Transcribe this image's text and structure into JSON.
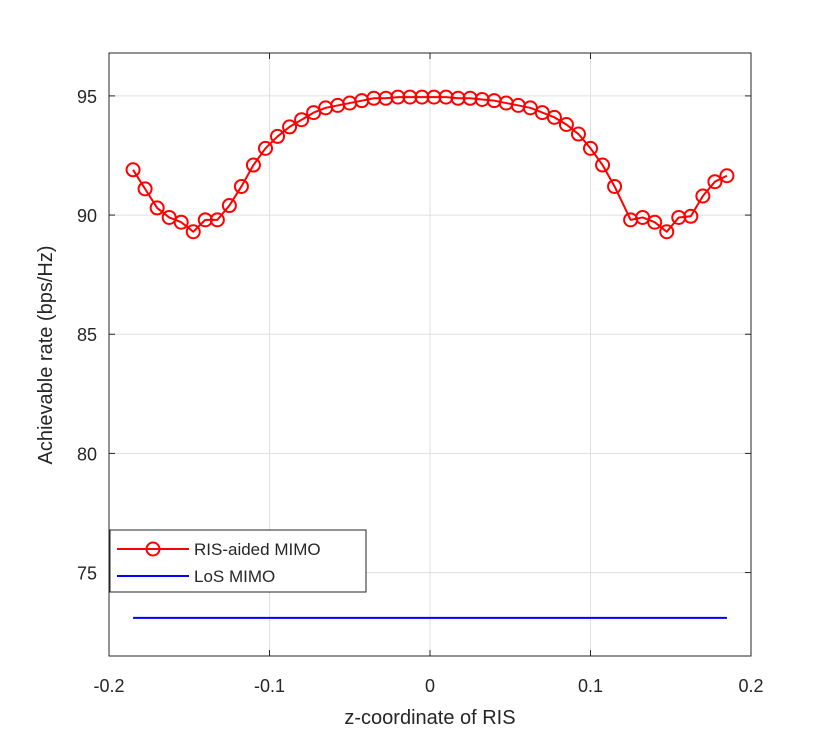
{
  "chart_data": {
    "type": "line",
    "title": "",
    "xlabel": "z-coordinate of RIS",
    "ylabel": "Achievable rate (bps/Hz)",
    "xlim": [
      -0.2,
      0.2
    ],
    "ylim": [
      71.5,
      96.8
    ],
    "xticks": [
      -0.2,
      -0.1,
      0,
      0.1,
      0.2
    ],
    "xtick_labels": [
      "-0.2",
      "-0.1",
      "0",
      "0.1",
      "0.2"
    ],
    "yticks": [
      75,
      80,
      85,
      90,
      95
    ],
    "ytick_labels": [
      "75",
      "80",
      "85",
      "90",
      "95"
    ],
    "grid": true,
    "legend_position": "bottom-left",
    "series": [
      {
        "name": "RIS-aided MIMO",
        "color": "#ff0000",
        "marker": "circle",
        "x": [
          -0.185,
          -0.1775,
          -0.17,
          -0.1625,
          -0.155,
          -0.1475,
          -0.14,
          -0.1325,
          -0.125,
          -0.1175,
          -0.11,
          -0.1025,
          -0.095,
          -0.0875,
          -0.08,
          -0.0725,
          -0.065,
          -0.0575,
          -0.05,
          -0.0425,
          -0.035,
          -0.0275,
          -0.02,
          -0.0125,
          -0.005,
          0.0025,
          0.01,
          0.0175,
          0.025,
          0.0325,
          0.04,
          0.0475,
          0.055,
          0.0625,
          0.07,
          0.0775,
          0.085,
          0.0925,
          0.1,
          0.1075,
          0.115,
          0.125,
          0.1325,
          0.14,
          0.1475,
          0.155,
          0.1625,
          0.17,
          0.1775,
          0.185
        ],
        "y": [
          91.9,
          91.1,
          90.3,
          89.9,
          89.7,
          89.3,
          89.8,
          89.8,
          90.4,
          91.2,
          92.1,
          92.8,
          93.3,
          93.7,
          94.0,
          94.3,
          94.5,
          94.6,
          94.7,
          94.8,
          94.9,
          94.9,
          94.95,
          94.95,
          94.95,
          94.95,
          94.95,
          94.9,
          94.9,
          94.85,
          94.8,
          94.7,
          94.6,
          94.5,
          94.3,
          94.1,
          93.8,
          93.4,
          92.8,
          92.1,
          91.2,
          89.8,
          89.9,
          89.7,
          89.3,
          89.9,
          89.95,
          90.8,
          91.4,
          91.65
        ]
      },
      {
        "name": "LoS MIMO",
        "color": "#0000ff",
        "marker": "none",
        "x": [
          -0.185,
          0.185
        ],
        "y": [
          73.1,
          73.1
        ]
      }
    ]
  }
}
